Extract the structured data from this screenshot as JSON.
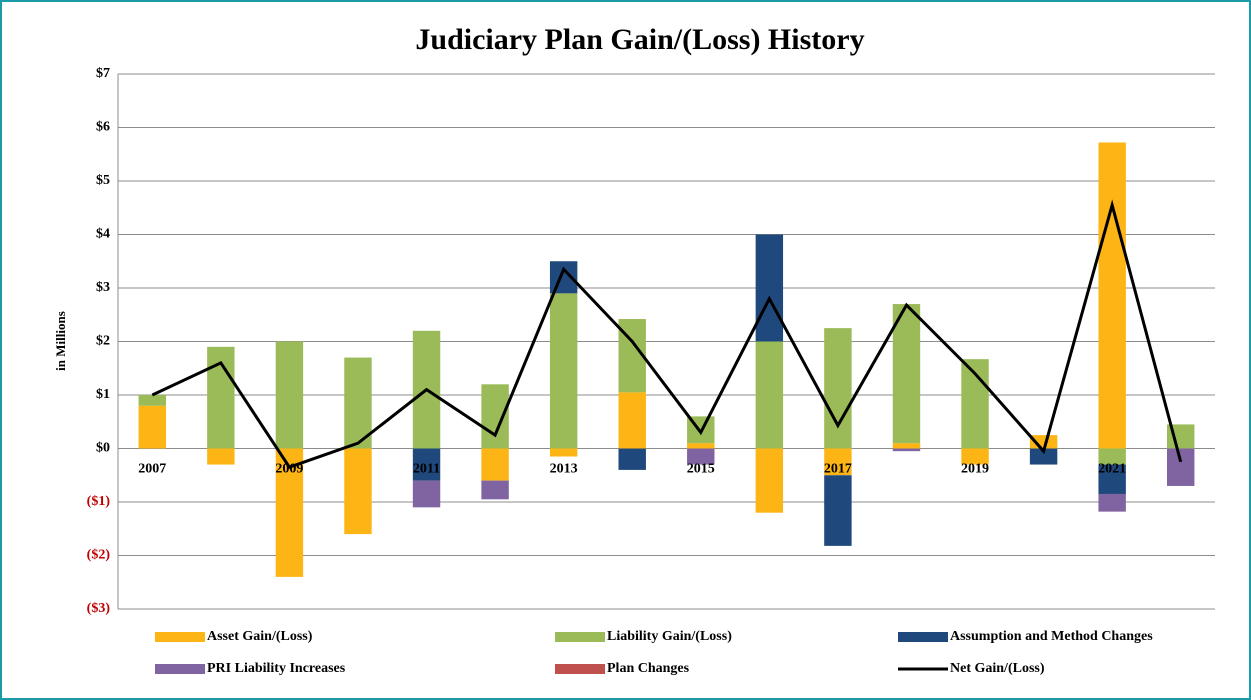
{
  "chart_data": {
    "type": "bar",
    "stacked": true,
    "title": "Judiciary Plan Gain/(Loss) History",
    "y_label": "in Millions",
    "categories": [
      "2007",
      null,
      "2009",
      null,
      "2011",
      null,
      "2013",
      null,
      "2015",
      null,
      "2017",
      null,
      "2019",
      null,
      "2021",
      null
    ],
    "series": [
      {
        "name": "Asset Gain/(Loss)",
        "color": "#fdb515",
        "values": [
          0.8,
          -0.3,
          -2.4,
          -1.6,
          0,
          -0.6,
          -0.15,
          1.05,
          0.1,
          -1.2,
          -0.5,
          0.1,
          -0.3,
          0.25,
          5.72,
          0
        ]
      },
      {
        "name": "Liability Gain/(Loss)",
        "color": "#9bbb59",
        "values": [
          0.2,
          1.9,
          2.0,
          1.7,
          2.2,
          1.2,
          2.9,
          1.37,
          0.5,
          2.0,
          2.25,
          2.6,
          1.67,
          0,
          -0.3,
          0.45
        ]
      },
      {
        "name": "Assumption and Method Changes",
        "color": "#1f497d",
        "values": [
          0,
          0,
          0,
          0,
          -0.6,
          0,
          0.6,
          -0.4,
          0,
          2.0,
          -1.32,
          0,
          0,
          -0.3,
          -0.55,
          0
        ]
      },
      {
        "name": "PRI Liability Increases",
        "color": "#8064a2",
        "values": [
          0,
          0,
          0,
          0,
          -0.5,
          -0.35,
          0,
          0,
          -0.3,
          0,
          0,
          -0.05,
          0,
          0,
          -0.33,
          -0.7
        ]
      },
      {
        "name": "Plan Changes",
        "color": "#c0504d",
        "values": [
          0,
          0,
          0,
          0,
          0,
          0,
          0,
          0,
          0,
          0,
          0,
          0,
          0,
          0,
          0,
          0
        ]
      },
      {
        "name": "Net Gain/(Loss)",
        "color": "#000000",
        "type": "line",
        "values": [
          1.0,
          1.6,
          -0.35,
          0.1,
          1.1,
          0.25,
          3.35,
          2.0,
          0.3,
          2.8,
          0.43,
          2.68,
          1.4,
          -0.05,
          4.55,
          -0.25
        ]
      }
    ],
    "ylim": [
      -3,
      7
    ],
    "yticks": [
      {
        "value": 7,
        "label": "$7"
      },
      {
        "value": 6,
        "label": "$6"
      },
      {
        "value": 5,
        "label": "$5"
      },
      {
        "value": 4,
        "label": "$4"
      },
      {
        "value": 3,
        "label": "$3"
      },
      {
        "value": 2,
        "label": "$2"
      },
      {
        "value": 1,
        "label": "$1"
      },
      {
        "value": 0,
        "label": "$0"
      },
      {
        "value": -1,
        "label": "($1)"
      },
      {
        "value": -2,
        "label": "($2)"
      },
      {
        "value": -3,
        "label": "($3)"
      }
    ],
    "negative_tick_color": "#c00000",
    "grid": true,
    "legend": "bottom"
  }
}
